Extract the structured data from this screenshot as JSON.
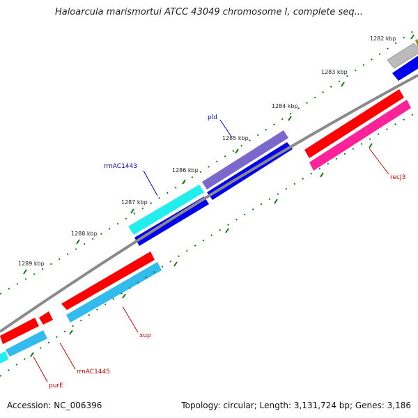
{
  "title": "Haloarcula marismortui ATCC 43049 chromosome I, complete seq...",
  "footer": {
    "accession": "Accession: NC_006396",
    "summary": "Topology: circular; Length: 3,131,724 bp; Genes: 3,186"
  },
  "ticks": [
    "1282 kbp",
    "1283 kbp",
    "1284 kbp",
    "1285 kbp",
    "1286 kbp",
    "1287 kbp",
    "1288 kbp",
    "1289 kbp"
  ],
  "labels": {
    "pld": "pld",
    "rrnAC1443": "rrnAC1443",
    "recJ3": "recJ3",
    "xup": "xup",
    "rrnAC1445": "rrnAC1445",
    "purE": "purE"
  },
  "colors": {
    "backbone": "#8a8a8a",
    "cds": "#ff0000",
    "rrna": "#33bbee",
    "blue": "#0000ee",
    "pink": "#ff2299",
    "purple": "#7b68cc",
    "cyan": "#22eeee",
    "gray": "#bbbbbb",
    "olive": "#889922",
    "tick": "#117711",
    "label_red": "#cc0000",
    "label_blue": "#0000aa"
  }
}
